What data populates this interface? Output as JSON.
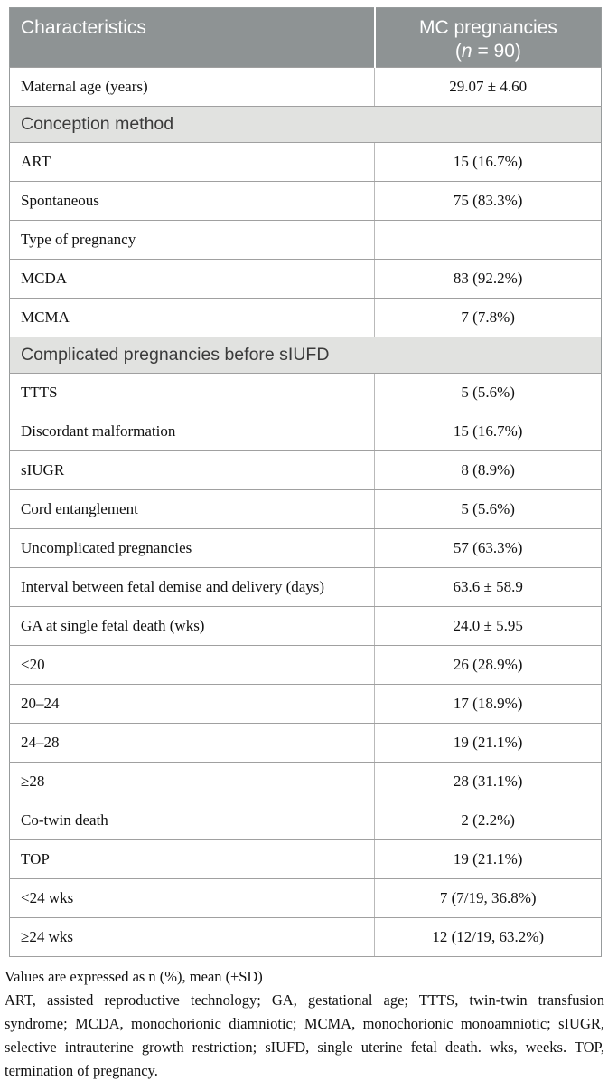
{
  "header": {
    "characteristics": "Characteristics",
    "group_line1": "MC pregnancies",
    "n_prefix": "(",
    "n_italic": "n",
    "n_suffix": " = 90)"
  },
  "rows": [
    {
      "type": "data",
      "label": "Maternal age (years)",
      "value": "29.07 ± 4.60"
    },
    {
      "type": "section",
      "label": "Conception method"
    },
    {
      "type": "data",
      "label": "ART",
      "value": "15 (16.7%)"
    },
    {
      "type": "data",
      "label": "Spontaneous",
      "value": "75 (83.3%)"
    },
    {
      "type": "data",
      "label": "Type of pregnancy",
      "value": ""
    },
    {
      "type": "data",
      "label": "MCDA",
      "value": "83 (92.2%)"
    },
    {
      "type": "data",
      "label": "MCMA",
      "value": "7 (7.8%)"
    },
    {
      "type": "section",
      "label": "Complicated pregnancies before sIUFD"
    },
    {
      "type": "data",
      "label": "TTTS",
      "value": "5 (5.6%)"
    },
    {
      "type": "data",
      "label": "Discordant malformation",
      "value": "15 (16.7%)"
    },
    {
      "type": "data",
      "label": "sIUGR",
      "value": "8 (8.9%)"
    },
    {
      "type": "data",
      "label": "Cord entanglement",
      "value": "5 (5.6%)"
    },
    {
      "type": "data",
      "label": "Uncomplicated pregnancies",
      "value": "57 (63.3%)"
    },
    {
      "type": "data",
      "label": "Interval between fetal demise and delivery (days)",
      "value": "63.6 ± 58.9"
    },
    {
      "type": "data",
      "label": "GA at single fetal death (wks)",
      "value": "24.0 ± 5.95"
    },
    {
      "type": "data",
      "label": "<20",
      "value": "26 (28.9%)"
    },
    {
      "type": "data",
      "label": "20–24",
      "value": "17 (18.9%)"
    },
    {
      "type": "data",
      "label": "24–28",
      "value": "19 (21.1%)"
    },
    {
      "type": "data",
      "label": "≥28",
      "value": "28 (31.1%)"
    },
    {
      "type": "data",
      "label": "Co-twin death",
      "value": "2 (2.2%)"
    },
    {
      "type": "data",
      "label": "TOP",
      "value": "19 (21.1%)"
    },
    {
      "type": "data",
      "label": "<24 wks",
      "value": "7 (7/19, 36.8%)"
    },
    {
      "type": "data",
      "label": "≥24 wks",
      "value": "12 (12/19, 63.2%)"
    }
  ],
  "footnotes": {
    "values_note": "Values are expressed as n (%), mean (±SD)",
    "abbreviations": "ART, assisted reproductive technology; GA, gestational age; TTTS, twin-twin transfusion syndrome; MCDA, monochorionic diamniotic; MCMA, monochorionic monoamniotic; sIUGR, selective intrauterine growth restriction; sIUFD, single uterine fetal death. wks, weeks. TOP, termination of pregnancy."
  },
  "colors": {
    "header_bg": "#8e9394",
    "header_text": "#ffffff",
    "section_bg": "#e1e2e0",
    "section_text": "#3a3a3a",
    "body_text": "#111111",
    "grid_line": "#a0a0a0",
    "divider": "#b9b9b9",
    "outer_border": "#979b9c",
    "page_bg": "#ffffff"
  }
}
